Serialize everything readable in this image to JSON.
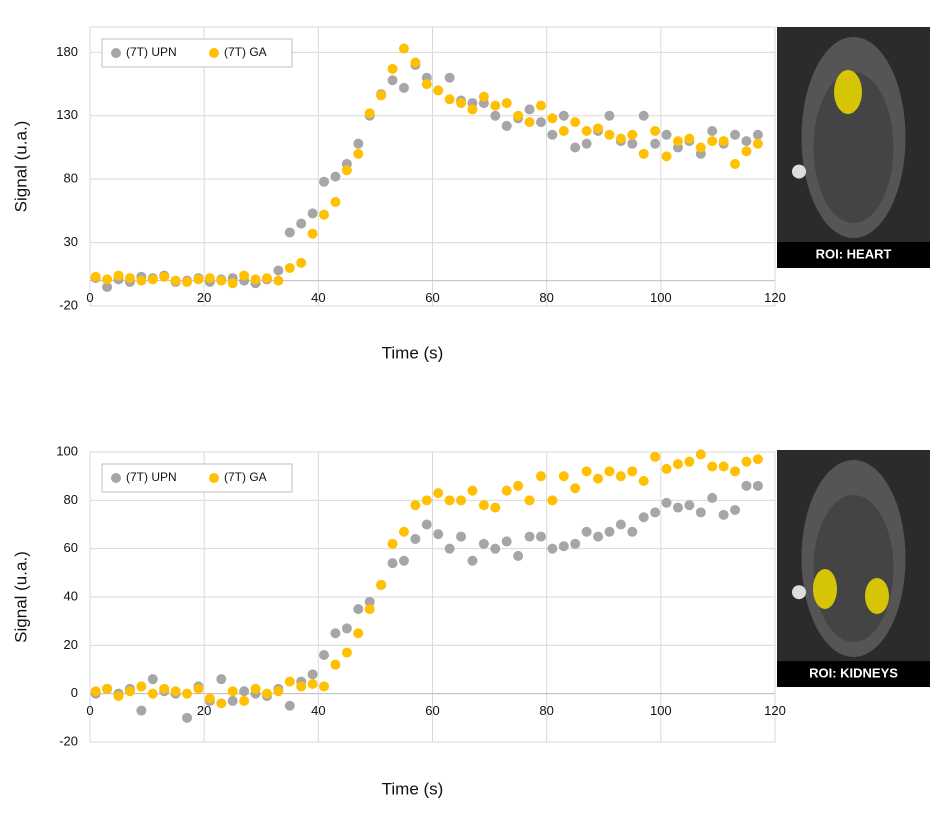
{
  "chart_data": [
    {
      "type": "scatter",
      "xlabel": "Time (s)",
      "ylabel": "Signal (u.a.)",
      "xlim": [
        0,
        120
      ],
      "xticks": [
        0,
        20,
        40,
        60,
        80,
        100,
        120
      ],
      "ylim": [
        -20,
        200
      ],
      "yticks": [
        -20,
        30,
        80,
        130,
        180
      ],
      "grid": true,
      "legend": "upper left",
      "annotations": [
        "ROI: HEART"
      ],
      "x": [
        1,
        3,
        5,
        7,
        9,
        11,
        13,
        15,
        17,
        19,
        21,
        23,
        25,
        27,
        29,
        31,
        33,
        35,
        37,
        39,
        41,
        43,
        45,
        47,
        49,
        51,
        53,
        55,
        57,
        59,
        61,
        63,
        65,
        67,
        69,
        71,
        73,
        75,
        77,
        79,
        81,
        83,
        85,
        87,
        89,
        91,
        93,
        95,
        97,
        99,
        101,
        103,
        105,
        107,
        109,
        111,
        113,
        115,
        117
      ],
      "series": [
        {
          "name": "(7T) UPN",
          "color": "#a6a6a6",
          "values": [
            2,
            -5,
            1,
            -1,
            3,
            2,
            4,
            -1,
            0,
            2,
            -1,
            1,
            2,
            0,
            -2,
            1,
            8,
            38,
            45,
            53,
            78,
            82,
            92,
            108,
            130,
            147,
            158,
            152,
            170,
            160,
            150,
            160,
            142,
            140,
            140,
            130,
            122,
            128,
            135,
            125,
            115,
            130,
            105,
            108,
            118,
            130,
            110,
            108,
            130,
            108,
            115,
            105,
            110,
            100,
            118,
            108,
            115,
            110,
            115
          ]
        },
        {
          "name": "(7T) GA",
          "color": "#ffc000",
          "values": [
            3,
            1,
            4,
            2,
            0,
            1,
            3,
            0,
            -1,
            1,
            2,
            0,
            -2,
            4,
            1,
            2,
            0,
            10,
            14,
            37,
            52,
            62,
            87,
            100,
            132,
            146,
            167,
            183,
            172,
            155,
            150,
            143,
            140,
            135,
            145,
            138,
            140,
            130,
            125,
            138,
            128,
            118,
            125,
            118,
            120,
            115,
            112,
            115,
            100,
            118,
            98,
            110,
            112,
            105,
            110,
            110,
            92,
            102,
            108
          ]
        }
      ]
    },
    {
      "type": "scatter",
      "xlabel": "Time (s)",
      "ylabel": "Signal (u.a.)",
      "xlim": [
        0,
        120
      ],
      "xticks": [
        0,
        20,
        40,
        60,
        80,
        100,
        120
      ],
      "ylim": [
        -20,
        100
      ],
      "yticks": [
        -20,
        0,
        20,
        40,
        60,
        80,
        100
      ],
      "grid": true,
      "legend": "upper left",
      "annotations": [
        "ROI: KIDNEYS"
      ],
      "x": [
        1,
        3,
        5,
        7,
        9,
        11,
        13,
        15,
        17,
        19,
        21,
        23,
        25,
        27,
        29,
        31,
        33,
        35,
        37,
        39,
        41,
        43,
        45,
        47,
        49,
        51,
        53,
        55,
        57,
        59,
        61,
        63,
        65,
        67,
        69,
        71,
        73,
        75,
        77,
        79,
        81,
        83,
        85,
        87,
        89,
        91,
        93,
        95,
        97,
        99,
        101,
        103,
        105,
        107,
        109,
        111,
        113,
        115,
        117
      ],
      "series": [
        {
          "name": "(7T) UPN",
          "color": "#a6a6a6",
          "values": [
            0,
            2,
            0,
            2,
            -7,
            6,
            1,
            0,
            -10,
            3,
            -3,
            6,
            -3,
            1,
            0,
            -1,
            2,
            -5,
            5,
            8,
            16,
            25,
            27,
            35,
            38,
            45,
            54,
            55,
            64,
            70,
            66,
            60,
            65,
            55,
            62,
            60,
            63,
            57,
            65,
            65,
            60,
            61,
            62,
            67,
            65,
            67,
            70,
            67,
            73,
            75,
            79,
            77,
            78,
            75,
            81,
            74,
            76,
            86,
            86
          ]
        },
        {
          "name": "(7T) GA",
          "color": "#ffc000",
          "values": [
            1,
            2,
            -1,
            1,
            3,
            0,
            2,
            1,
            0,
            2,
            -2,
            -4,
            1,
            -3,
            2,
            0,
            1,
            5,
            3,
            4,
            3,
            12,
            17,
            25,
            35,
            45,
            62,
            67,
            78,
            80,
            83,
            80,
            80,
            84,
            78,
            77,
            84,
            86,
            80,
            90,
            80,
            90,
            85,
            92,
            89,
            92,
            90,
            92,
            88,
            98,
            93,
            95,
            96,
            99,
            94,
            94,
            92,
            96,
            97
          ]
        }
      ]
    }
  ]
}
